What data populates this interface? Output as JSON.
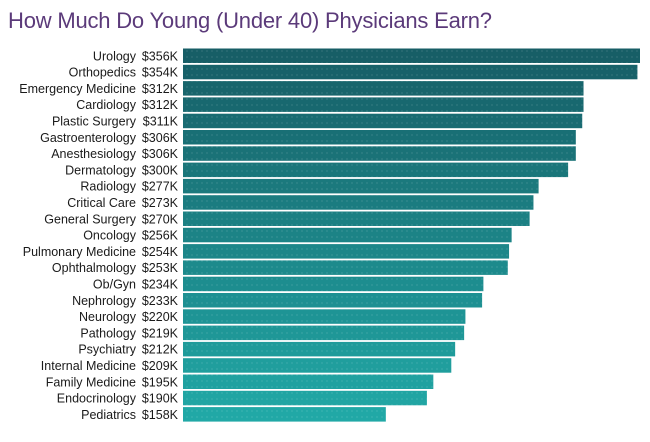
{
  "chart_data": {
    "type": "bar",
    "orientation": "horizontal",
    "title": "How Much Do Young (Under 40) Physicians Earn?",
    "value_prefix": "$",
    "value_suffix": "K",
    "categories": [
      "Urology",
      "Orthopedics",
      "Emergency Medicine",
      "Cardiology",
      "Plastic Surgery",
      "Gastroenterology",
      "Anesthesiology",
      "Dermatology",
      "Radiology",
      "Critical Care",
      "General Surgery",
      "Oncology",
      "Pulmonary Medicine",
      "Ophthalmology",
      "Ob/Gyn",
      "Nephrology",
      "Neurology",
      "Pathology",
      "Psychiatry",
      "Internal Medicine",
      "Family Medicine",
      "Endocrinology",
      "Pediatrics"
    ],
    "values": [
      356,
      354,
      312,
      312,
      311,
      306,
      306,
      300,
      277,
      273,
      270,
      256,
      254,
      253,
      234,
      233,
      220,
      219,
      212,
      209,
      195,
      190,
      158
    ],
    "xlim": [
      0,
      356
    ],
    "colors": {
      "top": "#175e66",
      "bottom": "#21a8a6"
    }
  }
}
